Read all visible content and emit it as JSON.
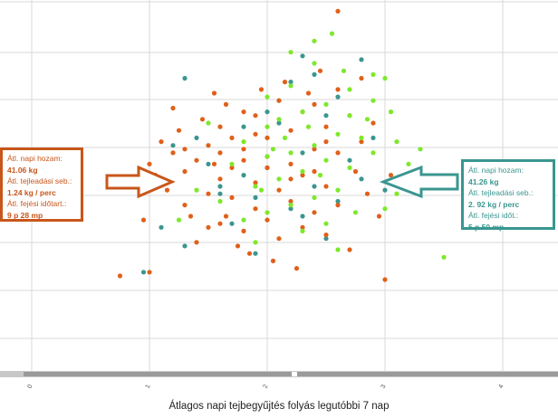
{
  "chart_data": {
    "type": "scatter",
    "xlabel": "Átlagos napi tejbegyűjtés folyás legutóbbi 7 nap",
    "ylabel": "",
    "xticks": [
      "0",
      "1",
      "2",
      "3",
      "4"
    ],
    "xlim": [
      -0.25,
      4.5
    ],
    "ylim": [
      0,
      10
    ],
    "grid": true,
    "colors": {
      "orange": "#e0601a",
      "teal": "#3a9690",
      "green": "#7ee82a"
    },
    "series": [
      {
        "color": "orange",
        "points": [
          [
            2.6,
            9.7
          ],
          [
            0.75,
            2.6
          ],
          [
            1.0,
            2.7
          ],
          [
            3.0,
            2.5
          ],
          [
            1.55,
            5.6
          ],
          [
            1.0,
            5.0
          ],
          [
            1.65,
            4.2
          ],
          [
            1.3,
            4.5
          ],
          [
            1.5,
            3.9
          ],
          [
            1.2,
            5.9
          ],
          [
            2.95,
            4.2
          ],
          [
            3.05,
            5.3
          ],
          [
            1.55,
            7.5
          ],
          [
            1.2,
            7.1
          ],
          [
            1.7,
            6.3
          ],
          [
            1.8,
            7.0
          ],
          [
            2.0,
            5.8
          ],
          [
            2.2,
            6.5
          ],
          [
            2.4,
            7.2
          ],
          [
            2.6,
            7.6
          ],
          [
            2.8,
            7.9
          ],
          [
            1.5,
            6.1
          ],
          [
            1.6,
            6.6
          ],
          [
            1.9,
            6.9
          ],
          [
            2.1,
            7.3
          ],
          [
            2.3,
            7.0
          ],
          [
            2.5,
            6.6
          ],
          [
            2.7,
            6.9
          ],
          [
            1.7,
            5.5
          ],
          [
            1.8,
            6.0
          ],
          [
            2.0,
            6.3
          ],
          [
            2.2,
            5.6
          ],
          [
            2.4,
            6.0
          ],
          [
            2.6,
            5.9
          ],
          [
            2.8,
            6.2
          ],
          [
            1.3,
            6.0
          ],
          [
            1.4,
            5.7
          ],
          [
            1.6,
            5.2
          ],
          [
            1.9,
            5.1
          ],
          [
            2.1,
            4.9
          ],
          [
            2.3,
            5.3
          ],
          [
            2.5,
            5.0
          ],
          [
            1.5,
            4.8
          ],
          [
            1.7,
            4.7
          ],
          [
            1.9,
            4.4
          ],
          [
            2.0,
            4.1
          ],
          [
            2.2,
            4.6
          ],
          [
            2.4,
            4.3
          ],
          [
            2.6,
            4.5
          ],
          [
            1.6,
            4.0
          ],
          [
            1.8,
            3.8
          ],
          [
            2.1,
            3.6
          ],
          [
            2.3,
            3.9
          ],
          [
            2.5,
            3.7
          ],
          [
            1.4,
            3.5
          ],
          [
            2.7,
            3.3
          ],
          [
            1.3,
            5.4
          ],
          [
            1.1,
            6.2
          ],
          [
            1.0,
            5.6
          ],
          [
            0.95,
            4.1
          ],
          [
            1.15,
            4.9
          ],
          [
            2.9,
            6.7
          ],
          [
            2.75,
            5.4
          ],
          [
            2.85,
            4.8
          ],
          [
            1.85,
            3.2
          ],
          [
            2.05,
            3.0
          ],
          [
            2.25,
            2.8
          ],
          [
            1.75,
            3.4
          ],
          [
            1.45,
            6.8
          ],
          [
            1.25,
            6.5
          ],
          [
            1.65,
            7.2
          ],
          [
            1.95,
            7.6
          ],
          [
            2.15,
            7.8
          ],
          [
            2.45,
            8.1
          ],
          [
            2.35,
            7.5
          ],
          [
            1.05,
            5.3
          ],
          [
            1.35,
            4.2
          ],
          [
            2.0,
            5.5
          ],
          [
            2.2,
            5.2
          ],
          [
            1.8,
            5.7
          ],
          [
            1.6,
            5.9
          ],
          [
            2.4,
            5.4
          ],
          [
            1.9,
            6.4
          ],
          [
            2.5,
            6.2
          ]
        ]
      },
      {
        "color": "teal",
        "points": [
          [
            0.95,
            2.7
          ],
          [
            2.3,
            8.5
          ],
          [
            2.8,
            8.4
          ],
          [
            2.2,
            7.8
          ],
          [
            2.1,
            7.3
          ],
          [
            2.5,
            6.9
          ],
          [
            2.3,
            5.9
          ],
          [
            2.0,
            5.5
          ],
          [
            1.8,
            5.3
          ],
          [
            2.4,
            5.0
          ],
          [
            1.6,
            4.8
          ],
          [
            2.6,
            4.6
          ],
          [
            2.2,
            4.4
          ],
          [
            1.7,
            4.0
          ],
          [
            1.1,
            3.9
          ],
          [
            1.3,
            3.4
          ],
          [
            2.5,
            3.6
          ],
          [
            1.9,
            3.2
          ],
          [
            2.7,
            5.7
          ],
          [
            1.5,
            5.6
          ],
          [
            1.4,
            6.3
          ],
          [
            2.9,
            6.3
          ],
          [
            2.1,
            6.7
          ],
          [
            1.2,
            6.1
          ],
          [
            2.0,
            7.0
          ],
          [
            2.4,
            8.0
          ],
          [
            2.6,
            7.4
          ],
          [
            1.8,
            6.6
          ],
          [
            1.6,
            5.0
          ],
          [
            2.3,
            4.2
          ],
          [
            1.9,
            4.7
          ],
          [
            2.8,
            5.2
          ],
          [
            1.3,
            7.9
          ],
          [
            1.0,
            5.3
          ],
          [
            3.0,
            4.9
          ]
        ]
      },
      {
        "color": "green",
        "points": [
          [
            2.2,
            8.6
          ],
          [
            2.4,
            8.3
          ],
          [
            2.9,
            8.0
          ],
          [
            3.0,
            7.9
          ],
          [
            2.7,
            7.6
          ],
          [
            2.5,
            7.2
          ],
          [
            2.3,
            7.0
          ],
          [
            2.1,
            6.8
          ],
          [
            2.0,
            6.6
          ],
          [
            2.6,
            6.4
          ],
          [
            2.8,
            6.3
          ],
          [
            2.4,
            6.1
          ],
          [
            2.2,
            5.9
          ],
          [
            2.0,
            5.8
          ],
          [
            2.5,
            5.7
          ],
          [
            2.7,
            5.5
          ],
          [
            2.3,
            5.4
          ],
          [
            2.1,
            5.2
          ],
          [
            1.9,
            5.0
          ],
          [
            2.6,
            4.9
          ],
          [
            2.4,
            4.7
          ],
          [
            2.2,
            4.5
          ],
          [
            2.0,
            4.3
          ],
          [
            1.8,
            4.1
          ],
          [
            2.5,
            4.0
          ],
          [
            2.3,
            3.8
          ],
          [
            1.9,
            3.5
          ],
          [
            2.6,
            3.3
          ],
          [
            3.1,
            6.2
          ],
          [
            3.2,
            5.6
          ],
          [
            3.3,
            6.0
          ],
          [
            3.5,
            3.1
          ],
          [
            3.0,
            4.4
          ],
          [
            3.1,
            4.8
          ],
          [
            2.9,
            5.9
          ],
          [
            1.7,
            5.6
          ],
          [
            1.6,
            4.6
          ],
          [
            1.4,
            4.9
          ],
          [
            1.5,
            6.7
          ],
          [
            1.8,
            6.2
          ],
          [
            2.7,
            6.9
          ],
          [
            2.9,
            7.3
          ],
          [
            2.0,
            7.4
          ],
          [
            2.2,
            7.7
          ],
          [
            2.4,
            8.9
          ],
          [
            2.55,
            9.1
          ],
          [
            2.15,
            6.3
          ],
          [
            2.35,
            6.6
          ],
          [
            2.75,
            4.3
          ],
          [
            1.95,
            4.9
          ],
          [
            2.05,
            6.0
          ],
          [
            2.45,
            5.3
          ],
          [
            1.25,
            4.1
          ],
          [
            2.85,
            6.8
          ],
          [
            3.05,
            7.0
          ],
          [
            2.65,
            8.1
          ]
        ]
      }
    ],
    "callouts": {
      "left": {
        "title": "Átl. napi hozam:",
        "yield": "41.06 kg",
        "rate_label": "Átl. tejleadási seb.:",
        "rate": "1.24 kg / perc",
        "time_label": "Átl. fejési időtart.:",
        "time": "9 p 28 mp"
      },
      "right": {
        "title": "Átl. napi hozam:",
        "yield": "41.26 kg",
        "rate_label": "Átl. tejleadási seb.:",
        "rate": "2. 92 kg / perc",
        "time_label": "Átl. fejési időt.:",
        "time": "5 p 50 mp"
      }
    }
  }
}
